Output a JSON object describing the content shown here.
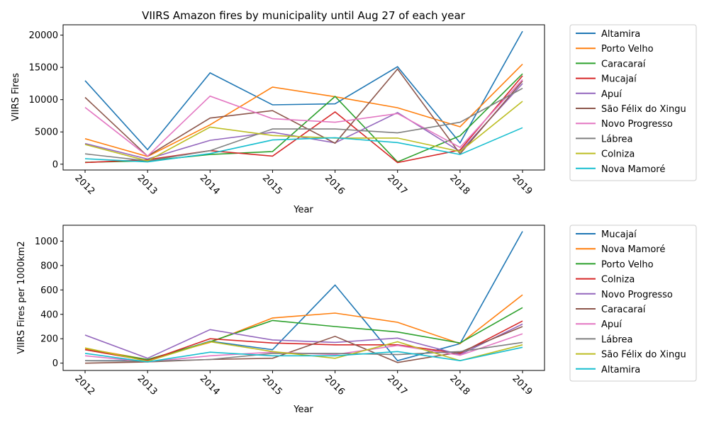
{
  "chart_data": [
    {
      "type": "line",
      "title": "VIIRS Amazon fires by municipality until Aug 27 of each year",
      "xlabel": "Year",
      "ylabel": "VIIRS Fires",
      "x": [
        "2012",
        "2013",
        "2014",
        "2015",
        "2016",
        "2017",
        "2018",
        "2019"
      ],
      "ylim": [
        -900,
        21600
      ],
      "yticks": [
        0,
        5000,
        10000,
        15000,
        20000
      ],
      "grid": false,
      "legend_placement": "outside-right",
      "series": [
        {
          "name": "Altamira",
          "color": "#1f77b4",
          "values": [
            12950,
            2250,
            14150,
            9200,
            9350,
            15100,
            3300,
            20600
          ]
        },
        {
          "name": "Porto Velho",
          "color": "#ff7f0e",
          "values": [
            3950,
            1200,
            6100,
            11950,
            10450,
            8750,
            5800,
            15500
          ]
        },
        {
          "name": "Caracaraí",
          "color": "#2ca02c",
          "values": [
            300,
            500,
            1500,
            1950,
            10500,
            350,
            4400,
            14000
          ]
        },
        {
          "name": "Mucajaí",
          "color": "#d62728",
          "values": [
            250,
            700,
            2100,
            1250,
            8100,
            250,
            2200,
            13700
          ]
        },
        {
          "name": "Apuí",
          "color": "#9467bd",
          "values": [
            3200,
            800,
            3700,
            4950,
            3300,
            8000,
            1950,
            12500
          ]
        },
        {
          "name": "São Félix do Xingu",
          "color": "#8c564b",
          "values": [
            10350,
            1250,
            7150,
            8300,
            3250,
            14750,
            1600,
            12900
          ]
        },
        {
          "name": "Novo Progresso",
          "color": "#e377c2",
          "values": [
            8800,
            1250,
            10550,
            7050,
            6500,
            7850,
            2600,
            13100
          ]
        },
        {
          "name": "Lábrea",
          "color": "#7f7f7f",
          "values": [
            1600,
            500,
            2100,
            5450,
            5450,
            4850,
            6500,
            11750
          ]
        },
        {
          "name": "Colniza",
          "color": "#bcbd22",
          "values": [
            3050,
            500,
            5750,
            4450,
            4050,
            4050,
            1950,
            9750
          ]
        },
        {
          "name": "Nova Mamoré",
          "color": "#17becf",
          "values": [
            850,
            350,
            1650,
            3750,
            4100,
            3350,
            1500,
            5650
          ]
        }
      ]
    },
    {
      "type": "line",
      "title": "",
      "xlabel": "Year",
      "ylabel": "VIIRS Fires per 1000km2",
      "x": [
        "2012",
        "2013",
        "2014",
        "2015",
        "2016",
        "2017",
        "2018",
        "2019"
      ],
      "ylim": [
        -60,
        1130
      ],
      "yticks": [
        0,
        200,
        400,
        600,
        800,
        1000
      ],
      "grid": false,
      "legend_placement": "outside-right",
      "series": [
        {
          "name": "Mucajaí",
          "color": "#1f77b4",
          "values": [
            20,
            20,
            180,
            110,
            640,
            20,
            160,
            1080
          ]
        },
        {
          "name": "Nova Mamoré",
          "color": "#ff7f0e",
          "values": [
            120,
            30,
            170,
            370,
            410,
            335,
            160,
            560
          ]
        },
        {
          "name": "Porto Velho",
          "color": "#2ca02c",
          "values": [
            110,
            30,
            175,
            350,
            300,
            255,
            165,
            455
          ]
        },
        {
          "name": "Colniza",
          "color": "#d62728",
          "values": [
            110,
            20,
            200,
            165,
            150,
            150,
            80,
            345
          ]
        },
        {
          "name": "Novo Progresso",
          "color": "#9467bd",
          "values": [
            230,
            40,
            275,
            190,
            170,
            205,
            70,
            320
          ]
        },
        {
          "name": "Caracaraí",
          "color": "#8c564b",
          "values": [
            0,
            10,
            30,
            40,
            220,
            5,
            90,
            300
          ]
        },
        {
          "name": "Apuí",
          "color": "#e377c2",
          "values": [
            60,
            10,
            60,
            90,
            70,
            145,
            65,
            240
          ]
        },
        {
          "name": "Lábrea",
          "color": "#7f7f7f",
          "values": [
            20,
            15,
            30,
            80,
            80,
            70,
            95,
            170
          ]
        },
        {
          "name": "São Félix do Xingu",
          "color": "#bcbd22",
          "values": [
            125,
            15,
            175,
            95,
            40,
            175,
            20,
            150
          ]
        },
        {
          "name": "Altamira",
          "color": "#17becf",
          "values": [
            80,
            10,
            90,
            60,
            60,
            95,
            20,
            130
          ]
        }
      ]
    }
  ]
}
